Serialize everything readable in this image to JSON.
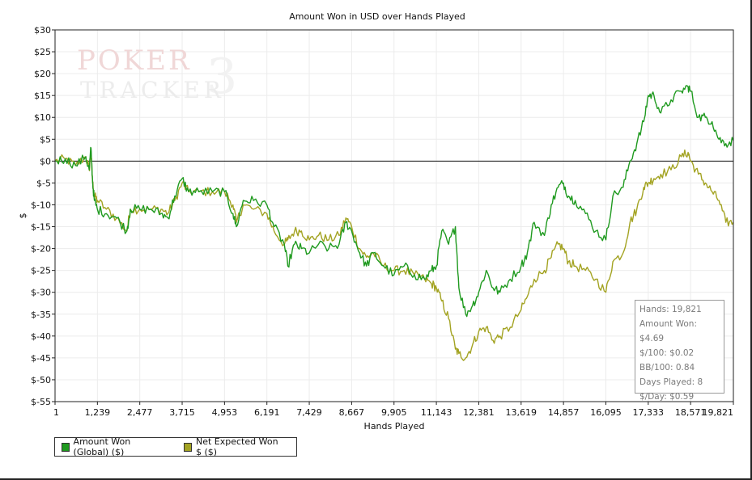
{
  "chart_data": {
    "type": "line",
    "title": "Amount Won in USD over Hands Played",
    "xlabel": "Hands Played",
    "ylabel": "$",
    "xlim": [
      1,
      19821
    ],
    "ylim": [
      -55,
      30
    ],
    "x_ticks": [
      1,
      1239,
      2477,
      3715,
      4953,
      6191,
      7429,
      8667,
      9905,
      11143,
      12381,
      13619,
      14857,
      16095,
      17333,
      18571,
      19821
    ],
    "x_tick_labels": [
      "1",
      "1,239",
      "2,477",
      "3,715",
      "4,953",
      "6,191",
      "7,429",
      "8,667",
      "9,905",
      "11,143",
      "12,381",
      "13,619",
      "14,857",
      "16,095",
      "17,333",
      "18,571",
      "19,821"
    ],
    "y_ticks": [
      30,
      25,
      20,
      15,
      10,
      5,
      0,
      -5,
      -10,
      -15,
      -20,
      -25,
      -30,
      -35,
      -40,
      -45,
      -50,
      -55
    ],
    "y_tick_labels": [
      "$30",
      "$25",
      "$20",
      "$15",
      "$10",
      "$5",
      "$0",
      "$-5",
      "$-10",
      "$-15",
      "$-20",
      "$-25",
      "$-30",
      "$-35",
      "$-40",
      "$-45",
      "$-50",
      "$-55"
    ],
    "grid": true,
    "legend_position": "bottom-left",
    "series": [
      {
        "name": "Amount Won (Global) ($)",
        "color": "#1f9a1f",
        "points": [
          [
            1,
            0
          ],
          [
            300,
            0.5
          ],
          [
            600,
            -1
          ],
          [
            900,
            1
          ],
          [
            1000,
            -2
          ],
          [
            1050,
            3
          ],
          [
            1100,
            -5
          ],
          [
            1150,
            -9
          ],
          [
            1239,
            -11
          ],
          [
            1500,
            -12
          ],
          [
            1800,
            -13
          ],
          [
            2100,
            -16
          ],
          [
            2200,
            -11
          ],
          [
            2477,
            -11
          ],
          [
            2800,
            -11
          ],
          [
            3100,
            -12
          ],
          [
            3300,
            -13
          ],
          [
            3500,
            -8
          ],
          [
            3715,
            -4
          ],
          [
            3900,
            -7
          ],
          [
            4200,
            -7
          ],
          [
            4600,
            -7
          ],
          [
            4953,
            -7
          ],
          [
            5200,
            -12
          ],
          [
            5300,
            -15
          ],
          [
            5500,
            -9
          ],
          [
            5800,
            -9
          ],
          [
            6191,
            -10
          ],
          [
            6400,
            -15
          ],
          [
            6700,
            -19
          ],
          [
            6800,
            -24
          ],
          [
            7000,
            -19
          ],
          [
            7200,
            -20
          ],
          [
            7429,
            -21
          ],
          [
            7700,
            -19
          ],
          [
            8000,
            -20
          ],
          [
            8300,
            -19
          ],
          [
            8500,
            -14
          ],
          [
            8667,
            -16
          ],
          [
            8900,
            -21
          ],
          [
            9100,
            -24
          ],
          [
            9300,
            -21
          ],
          [
            9600,
            -24
          ],
          [
            9905,
            -26
          ],
          [
            10200,
            -24
          ],
          [
            10500,
            -26
          ],
          [
            10800,
            -27
          ],
          [
            11000,
            -25
          ],
          [
            11143,
            -24
          ],
          [
            11300,
            -16
          ],
          [
            11500,
            -19
          ],
          [
            11700,
            -15
          ],
          [
            11800,
            -29
          ],
          [
            12000,
            -35
          ],
          [
            12200,
            -33
          ],
          [
            12381,
            -30
          ],
          [
            12600,
            -25
          ],
          [
            12800,
            -29
          ],
          [
            13000,
            -30
          ],
          [
            13300,
            -27
          ],
          [
            13619,
            -24
          ],
          [
            13800,
            -21
          ],
          [
            14000,
            -14
          ],
          [
            14300,
            -17
          ],
          [
            14500,
            -10
          ],
          [
            14700,
            -6
          ],
          [
            14857,
            -5
          ],
          [
            15000,
            -8
          ],
          [
            15200,
            -9
          ],
          [
            15500,
            -12
          ],
          [
            15800,
            -16
          ],
          [
            16095,
            -18
          ],
          [
            16300,
            -8
          ],
          [
            16600,
            -6
          ],
          [
            16800,
            0
          ],
          [
            17000,
            4
          ],
          [
            17200,
            9
          ],
          [
            17333,
            15
          ],
          [
            17500,
            15
          ],
          [
            17700,
            11
          ],
          [
            18000,
            14
          ],
          [
            18300,
            16
          ],
          [
            18500,
            17
          ],
          [
            18571,
            16
          ],
          [
            18800,
            10
          ],
          [
            19000,
            10
          ],
          [
            19200,
            9
          ],
          [
            19400,
            5
          ],
          [
            19600,
            4
          ],
          [
            19821,
            4.69
          ]
        ]
      },
      {
        "name": "Net Expected Won $ ($)",
        "color": "#a3a322",
        "points": [
          [
            1,
            0
          ],
          [
            300,
            0.5
          ],
          [
            600,
            -1
          ],
          [
            900,
            1
          ],
          [
            1000,
            -2
          ],
          [
            1050,
            2
          ],
          [
            1100,
            -5
          ],
          [
            1150,
            -8
          ],
          [
            1239,
            -9
          ],
          [
            1500,
            -11
          ],
          [
            1800,
            -13
          ],
          [
            2100,
            -16
          ],
          [
            2200,
            -11
          ],
          [
            2477,
            -11
          ],
          [
            2800,
            -11
          ],
          [
            3100,
            -11
          ],
          [
            3300,
            -12
          ],
          [
            3500,
            -9
          ],
          [
            3715,
            -5
          ],
          [
            3900,
            -7
          ],
          [
            4200,
            -7
          ],
          [
            4600,
            -7
          ],
          [
            4953,
            -7
          ],
          [
            5200,
            -10
          ],
          [
            5300,
            -14
          ],
          [
            5500,
            -10
          ],
          [
            5800,
            -11
          ],
          [
            6191,
            -12
          ],
          [
            6400,
            -16
          ],
          [
            6700,
            -19
          ],
          [
            6800,
            -18
          ],
          [
            7000,
            -16
          ],
          [
            7200,
            -16
          ],
          [
            7429,
            -18
          ],
          [
            7700,
            -17
          ],
          [
            8000,
            -18
          ],
          [
            8300,
            -17
          ],
          [
            8500,
            -13
          ],
          [
            8667,
            -15
          ],
          [
            8900,
            -20
          ],
          [
            9100,
            -22
          ],
          [
            9300,
            -21
          ],
          [
            9600,
            -24
          ],
          [
            9905,
            -25
          ],
          [
            10200,
            -25
          ],
          [
            10500,
            -26
          ],
          [
            10800,
            -27
          ],
          [
            11000,
            -28
          ],
          [
            11143,
            -29
          ],
          [
            11300,
            -32
          ],
          [
            11500,
            -36
          ],
          [
            11700,
            -43
          ],
          [
            11800,
            -44
          ],
          [
            12000,
            -45
          ],
          [
            12200,
            -42
          ],
          [
            12381,
            -39
          ],
          [
            12600,
            -38
          ],
          [
            12800,
            -41
          ],
          [
            13000,
            -40
          ],
          [
            13300,
            -38
          ],
          [
            13619,
            -34
          ],
          [
            13800,
            -31
          ],
          [
            14000,
            -27
          ],
          [
            14300,
            -25
          ],
          [
            14500,
            -22
          ],
          [
            14700,
            -19
          ],
          [
            14857,
            -20
          ],
          [
            15000,
            -23
          ],
          [
            15200,
            -24
          ],
          [
            15500,
            -25
          ],
          [
            15800,
            -27
          ],
          [
            16095,
            -30
          ],
          [
            16300,
            -23
          ],
          [
            16600,
            -21
          ],
          [
            16800,
            -14
          ],
          [
            17000,
            -11
          ],
          [
            17200,
            -6
          ],
          [
            17333,
            -5
          ],
          [
            17500,
            -4
          ],
          [
            17700,
            -3
          ],
          [
            18000,
            -2
          ],
          [
            18300,
            1
          ],
          [
            18500,
            2
          ],
          [
            18571,
            0
          ],
          [
            18800,
            -3
          ],
          [
            19000,
            -5
          ],
          [
            19200,
            -7
          ],
          [
            19400,
            -9
          ],
          [
            19600,
            -14
          ],
          [
            19821,
            -14
          ]
        ]
      }
    ]
  },
  "stats": {
    "hands": "Hands: 19,821",
    "amount_won": "Amount Won: $4.69",
    "per_100": "$/100: $0.02",
    "bb_100": "BB/100: 0.84",
    "days_played": "Days Played: 8",
    "per_day": "$/Day: $0.59"
  },
  "watermark": {
    "line1": "POKER",
    "line2": "TRACKER",
    "mark": "3"
  }
}
